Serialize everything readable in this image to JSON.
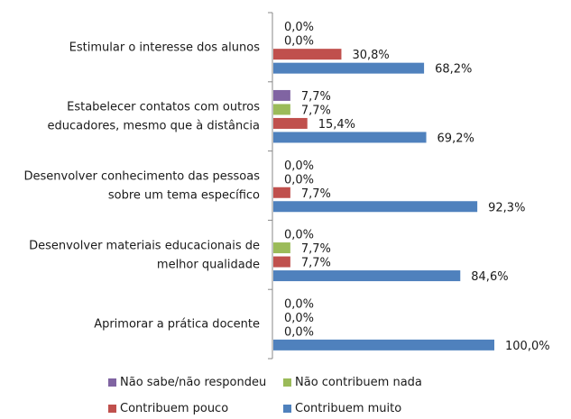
{
  "chart_data": {
    "type": "bar",
    "orientation": "horizontal",
    "title": "",
    "xlabel": "",
    "ylabel": "",
    "xlim": [
      0,
      100
    ],
    "grid": false,
    "legend_position": "bottom",
    "categories": [
      [
        "Estimular o interesse dos alunos"
      ],
      [
        "Estabelecer contatos com outros",
        "educadores, mesmo que à distância"
      ],
      [
        "Desenvolver conhecimento das pessoas",
        "sobre um tema específico"
      ],
      [
        "Desenvolver materiais educacionais de",
        "melhor qualidade"
      ],
      [
        "Aprimorar a prática docente"
      ]
    ],
    "series": [
      {
        "name": "Não sabe/não respondeu",
        "color": "#8064A2",
        "values": [
          0,
          7.7,
          0,
          0,
          0
        ],
        "labels": [
          "0,0%",
          "7,7%",
          "0,0%",
          "0,0%",
          "0,0%"
        ]
      },
      {
        "name": "Não contribuem nada",
        "color": "#9BBB59",
        "values": [
          0,
          7.7,
          0,
          7.7,
          0
        ],
        "labels": [
          "0,0%",
          "7,7%",
          "0,0%",
          "7,7%",
          "0,0%"
        ]
      },
      {
        "name": "Contribuem pouco",
        "color": "#C0504D",
        "values": [
          30.8,
          15.4,
          7.7,
          7.7,
          0
        ],
        "labels": [
          "30,8%",
          "15,4%",
          "7,7%",
          "7,7%",
          "0,0%"
        ]
      },
      {
        "name": "Contribuem muito",
        "color": "#4F81BD",
        "values": [
          68.2,
          69.2,
          92.3,
          84.6,
          100
        ],
        "labels": [
          "68,2%",
          "69,2%",
          "92,3%",
          "84,6%",
          "100,0%"
        ]
      }
    ]
  }
}
